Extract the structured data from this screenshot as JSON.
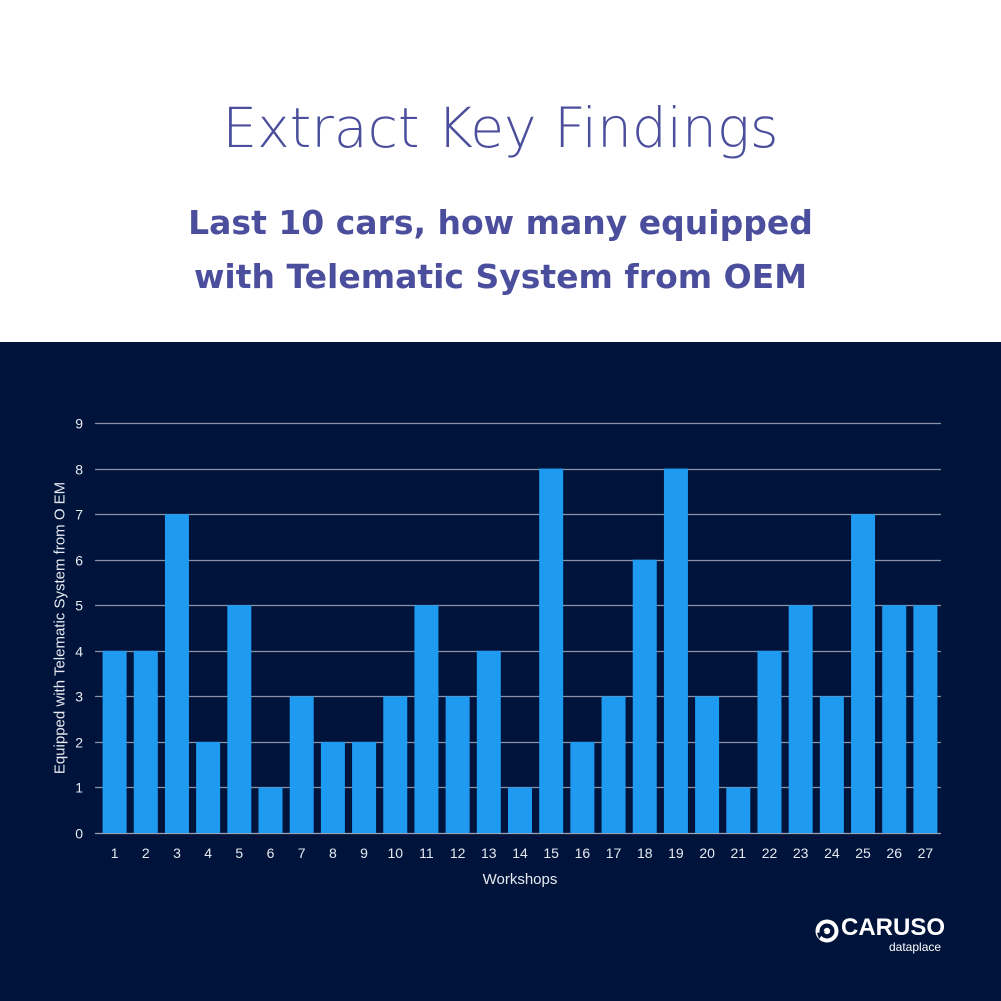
{
  "header": {
    "title": "Extract Key Findings",
    "subtitle_line1": "Last 10 cars, how many equipped",
    "subtitle_line2": "with Telematic System from OEM"
  },
  "logo": {
    "name": "CARUSO",
    "tagline": "dataplace",
    "icon": "caruso-logo-icon"
  },
  "colors": {
    "title": "#4a4e9c",
    "panel_bg": "#00133a",
    "bar": "#1e9bf0",
    "grid": "#8a93a8",
    "text": "#e6e9f0"
  },
  "chart_data": {
    "type": "bar",
    "title": "Last 10 cars, how many equipped with Telematic System from OEM",
    "xlabel": "Workshops",
    "ylabel": "Equipped with Telematic System from O EM",
    "categories": [
      "1",
      "2",
      "3",
      "4",
      "5",
      "6",
      "7",
      "8",
      "9",
      "10",
      "11",
      "12",
      "13",
      "14",
      "15",
      "16",
      "17",
      "18",
      "19",
      "20",
      "21",
      "22",
      "23",
      "24",
      "25",
      "26",
      "27"
    ],
    "values": [
      4,
      4,
      7,
      2,
      5,
      1,
      3,
      2,
      2,
      3,
      5,
      3,
      4,
      1,
      8,
      2,
      3,
      6,
      8,
      3,
      1,
      4,
      5,
      3,
      7,
      5,
      5
    ],
    "ylim": [
      0,
      9
    ],
    "yticks": [
      0,
      1,
      2,
      3,
      4,
      5,
      6,
      7,
      8,
      9
    ],
    "grid": true,
    "legend": "none"
  }
}
